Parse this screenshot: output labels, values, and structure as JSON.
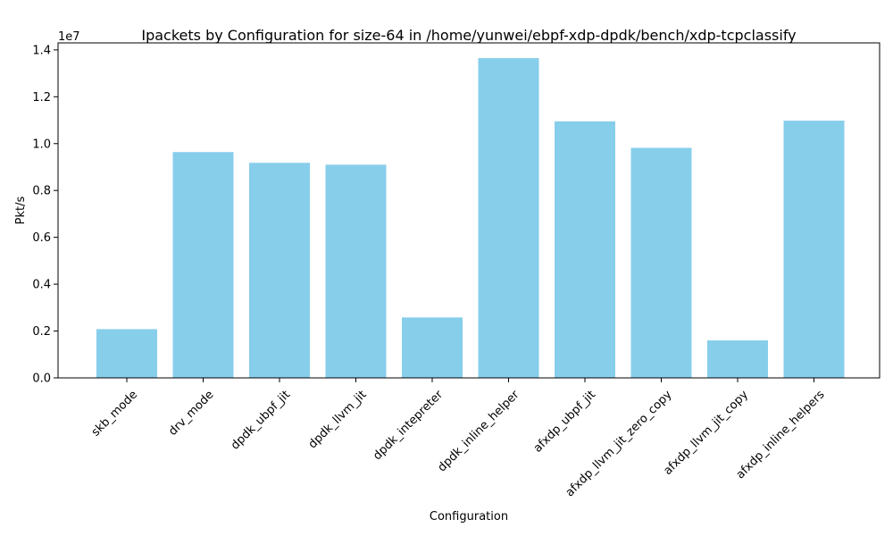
{
  "chart_data": {
    "type": "bar",
    "title": "Ipackets by Configuration for size-64 in /home/yunwei/ebpf-xdp-dpdk/bench/xdp-tcpclassify",
    "xlabel": "Configuration",
    "ylabel": "Pkt/s",
    "y_scale_label": "1e7",
    "ylim": [
      0,
      14300000
    ],
    "y_ticks": [
      0,
      2000000,
      4000000,
      6000000,
      8000000,
      10000000,
      12000000,
      14000000
    ],
    "y_tick_labels": [
      "0.0",
      "0.2",
      "0.4",
      "0.6",
      "0.8",
      "1.0",
      "1.2",
      "1.4"
    ],
    "categories": [
      "skb_mode",
      "drv_mode",
      "dpdk_ubpf_jit",
      "dpdk_llvm_jit",
      "dpdk_intepreter",
      "dpdk_inline_helper",
      "afxdp_ubpf_jit",
      "afxdp_llvm_jit_zero_copy",
      "afxdp_llvm_jit_copy",
      "afxdp_inline_helpers"
    ],
    "values": [
      2080000,
      9640000,
      9180000,
      9100000,
      2580000,
      13650000,
      10950000,
      9820000,
      1600000,
      10980000
    ],
    "bar_color": "#87CEEB",
    "grid": false
  }
}
